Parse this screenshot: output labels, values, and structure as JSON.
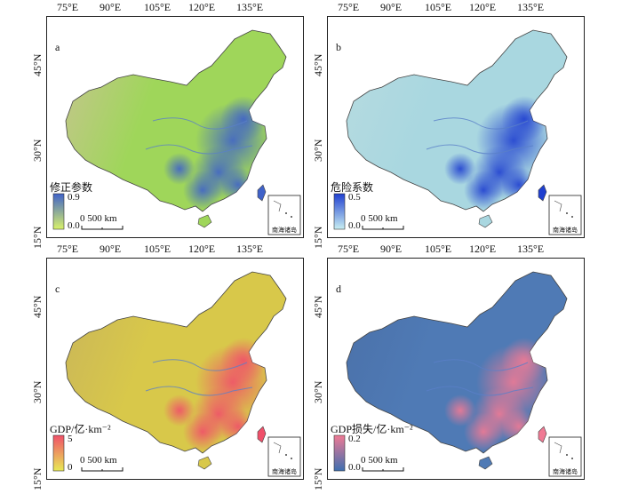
{
  "axes": {
    "lon_labels": [
      "75°E",
      "90°E",
      "105°E",
      "120°E",
      "135°E"
    ],
    "lat_labels": [
      "45°N",
      "30°N",
      "15°N"
    ]
  },
  "panels": [
    {
      "letter": "a",
      "legend_title": "修正参数",
      "legend_max": "0.9",
      "legend_min": "0.0",
      "colors": {
        "low": "#d9f26a",
        "high": "#3f62c9",
        "base": "#9fd65a",
        "west": "#c8c492"
      }
    },
    {
      "letter": "b",
      "legend_title": "危险系数",
      "legend_max": "0.5",
      "legend_min": "0.0",
      "colors": {
        "low": "#c8eef2",
        "high": "#1f3fd0",
        "base": "#a9d7e0",
        "west": "#b7dbe0"
      }
    },
    {
      "letter": "c",
      "legend_title": "GDP/亿·km⁻²",
      "legend_max": "5",
      "legend_min": "0",
      "colors": {
        "low": "#e8ea55",
        "high": "#f0506a",
        "base": "#d8c84a",
        "west": "#c9b55a"
      }
    },
    {
      "letter": "d",
      "legend_title": "GDP损失/亿·km⁻²",
      "legend_max": "0.2",
      "legend_min": "0.0",
      "colors": {
        "low": "#3e6fb0",
        "high": "#f07a94",
        "base": "#4f7ab5",
        "west": "#4a70a8"
      }
    }
  ],
  "scale_bar": "0   500 km",
  "inset_label": "南海诸岛"
}
